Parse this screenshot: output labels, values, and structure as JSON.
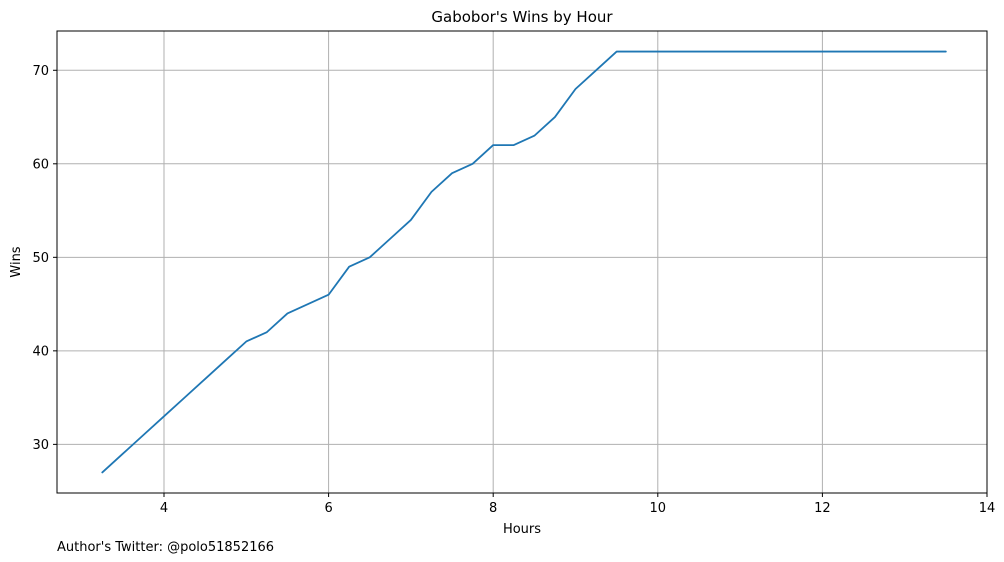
{
  "chart_data": {
    "type": "line",
    "title": "Gabobor's Wins by Hour",
    "xlabel": "Hours",
    "ylabel": "Wins",
    "xlim": [
      2.7,
      14.0
    ],
    "ylim": [
      24.8,
      74.2
    ],
    "xticks": [
      4,
      6,
      8,
      10,
      12,
      14
    ],
    "xtick_labels": [
      "4",
      "6",
      "8",
      "10",
      "12",
      "14"
    ],
    "yticks": [
      30,
      40,
      50,
      60,
      70
    ],
    "ytick_labels": [
      "30",
      "40",
      "50",
      "60",
      "70"
    ],
    "grid": true,
    "series": [
      {
        "color": "#1f77b4",
        "x": [
          3.25,
          3.5,
          3.75,
          4.0,
          4.25,
          4.5,
          4.75,
          5.0,
          5.25,
          5.5,
          5.75,
          6.0,
          6.25,
          6.5,
          6.75,
          7.0,
          7.25,
          7.5,
          7.75,
          8.0,
          8.25,
          8.5,
          8.75,
          9.0,
          9.25,
          9.5,
          9.75,
          10.0,
          10.25,
          10.5,
          10.75,
          11.0,
          11.25,
          11.5,
          11.75,
          12.0,
          12.25,
          12.5,
          12.75,
          13.0,
          13.25,
          13.5
        ],
        "y": [
          27,
          29,
          31,
          33,
          35,
          37,
          39,
          41,
          42,
          44,
          45,
          46,
          49,
          50,
          52,
          54,
          57,
          59,
          60,
          62,
          62,
          63,
          65,
          68,
          70,
          72,
          72,
          72,
          72,
          72,
          72,
          72,
          72,
          72,
          72,
          72,
          72,
          72,
          72,
          72,
          72,
          72
        ]
      }
    ]
  },
  "footnote": "Author's Twitter: @polo51852166"
}
